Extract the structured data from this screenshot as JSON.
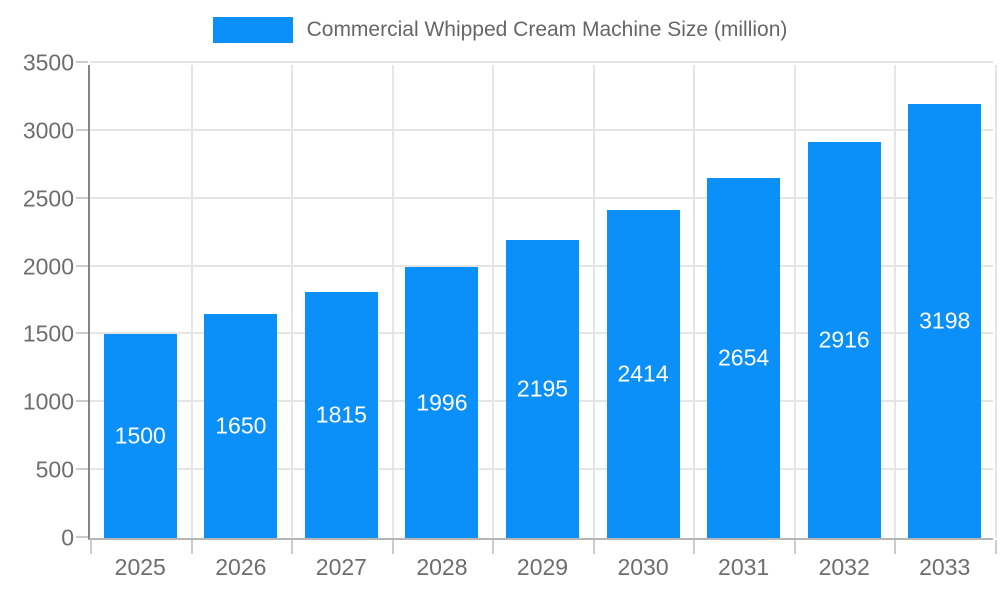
{
  "legend": {
    "label": "Commercial Whipped Cream Machine Size (million)"
  },
  "colors": {
    "bar": "#0a90f8",
    "gridline": "#e5e5e5",
    "y_axis_line": "#858585",
    "x_axis_line": "#b5b5b5",
    "tick": "#cccccc",
    "axis_label_text": "#6e6e6e",
    "legend_text": "#666666",
    "bar_label_text": "#ffffff",
    "background": "#ffffff"
  },
  "chart_data": {
    "type": "bar",
    "title": "Commercial Whipped Cream Machine Size (million)",
    "categories": [
      "2025",
      "2026",
      "2027",
      "2028",
      "2029",
      "2030",
      "2031",
      "2032",
      "2033"
    ],
    "values": [
      1500,
      1650,
      1815,
      1996,
      2195,
      2414,
      2654,
      2916,
      3198
    ],
    "xlabel": "",
    "ylabel": "",
    "ylim": [
      0,
      3500
    ],
    "y_ticks": [
      0,
      500,
      1000,
      1500,
      2000,
      2500,
      3000,
      3500
    ],
    "grid": true,
    "legend_position": "top-center",
    "bar_label_position": "inside-center"
  }
}
